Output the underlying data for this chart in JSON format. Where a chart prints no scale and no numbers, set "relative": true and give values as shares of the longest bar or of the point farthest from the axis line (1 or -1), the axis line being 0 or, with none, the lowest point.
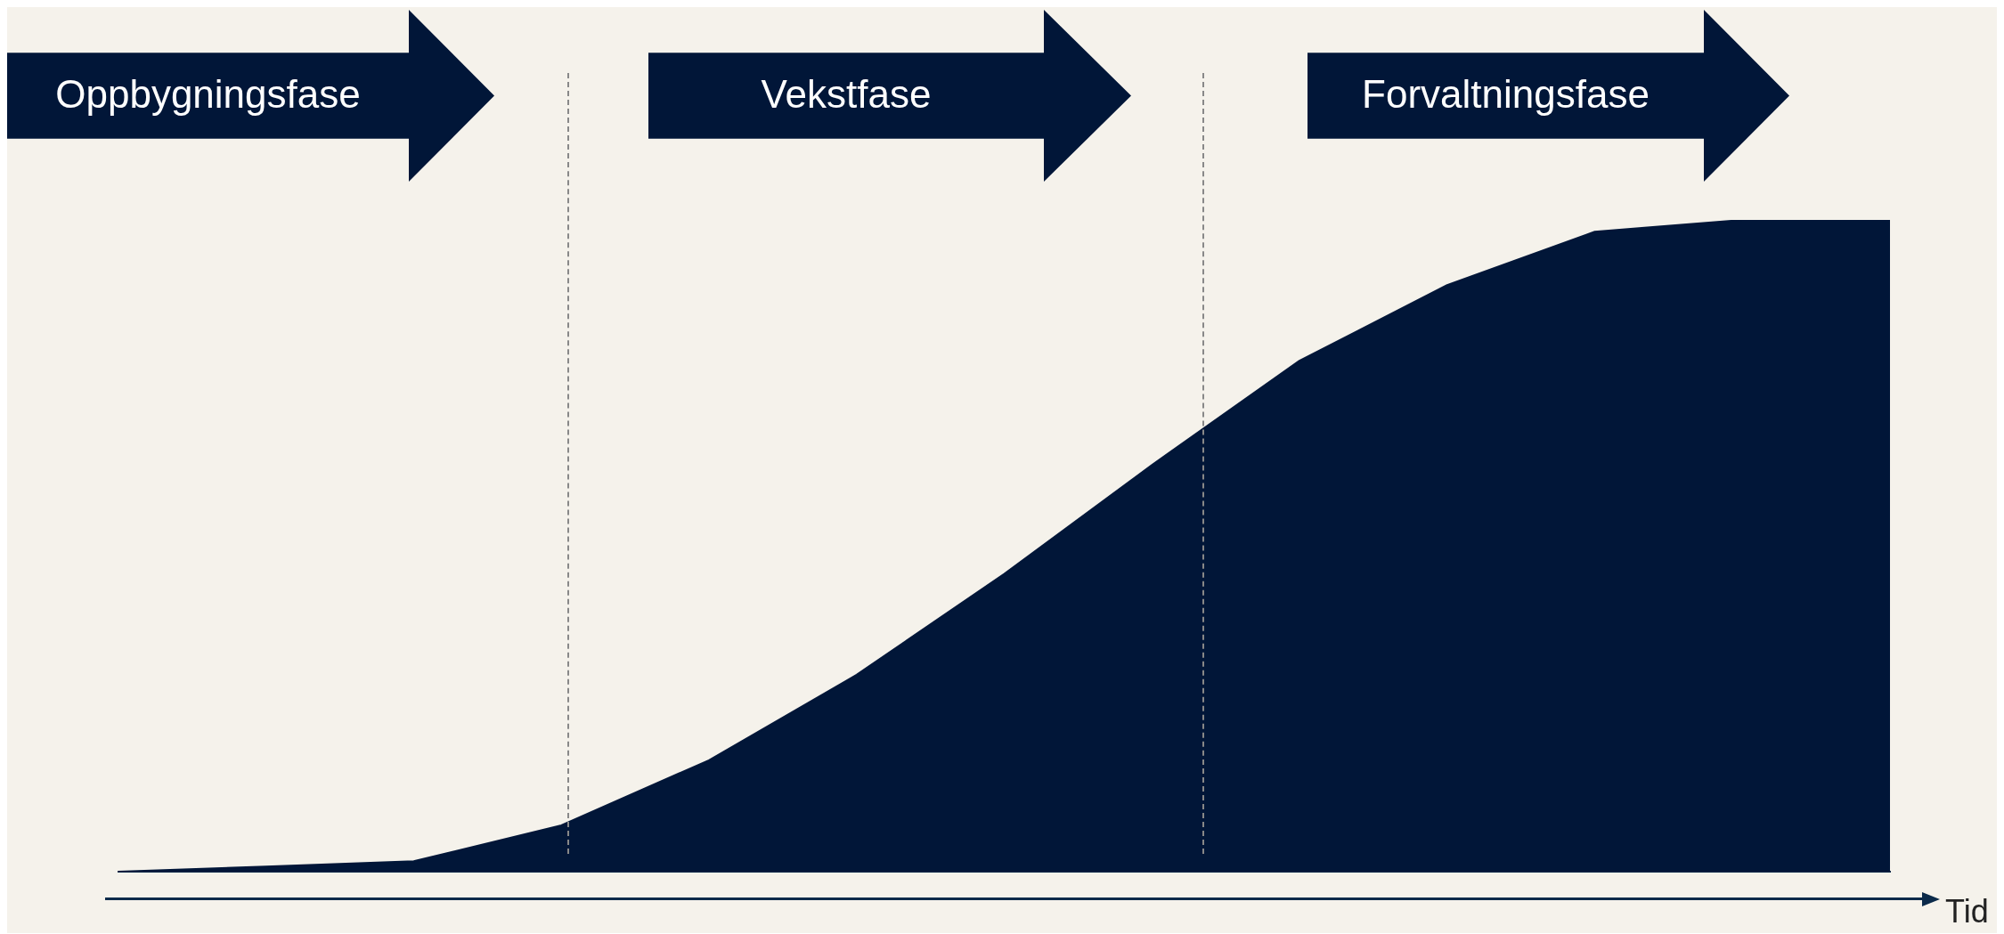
{
  "chart_data": {
    "type": "area",
    "relative": true,
    "xlabel": "Tid",
    "categories": [
      null,
      null,
      null,
      null,
      null,
      null,
      null,
      null,
      null,
      null,
      null,
      null,
      null
    ],
    "series": [
      {
        "color": "#011638",
        "values": [
          0,
          0.008,
          0.016,
          0.071,
          0.171,
          0.302,
          0.457,
          0.624,
          0.784,
          0.9,
          0.982,
          1,
          1
        ]
      }
    ],
    "annotations": [
      "Oppbygningsfase",
      "Vekstfase",
      "Forvaltningsfase"
    ],
    "legend": false
  }
}
